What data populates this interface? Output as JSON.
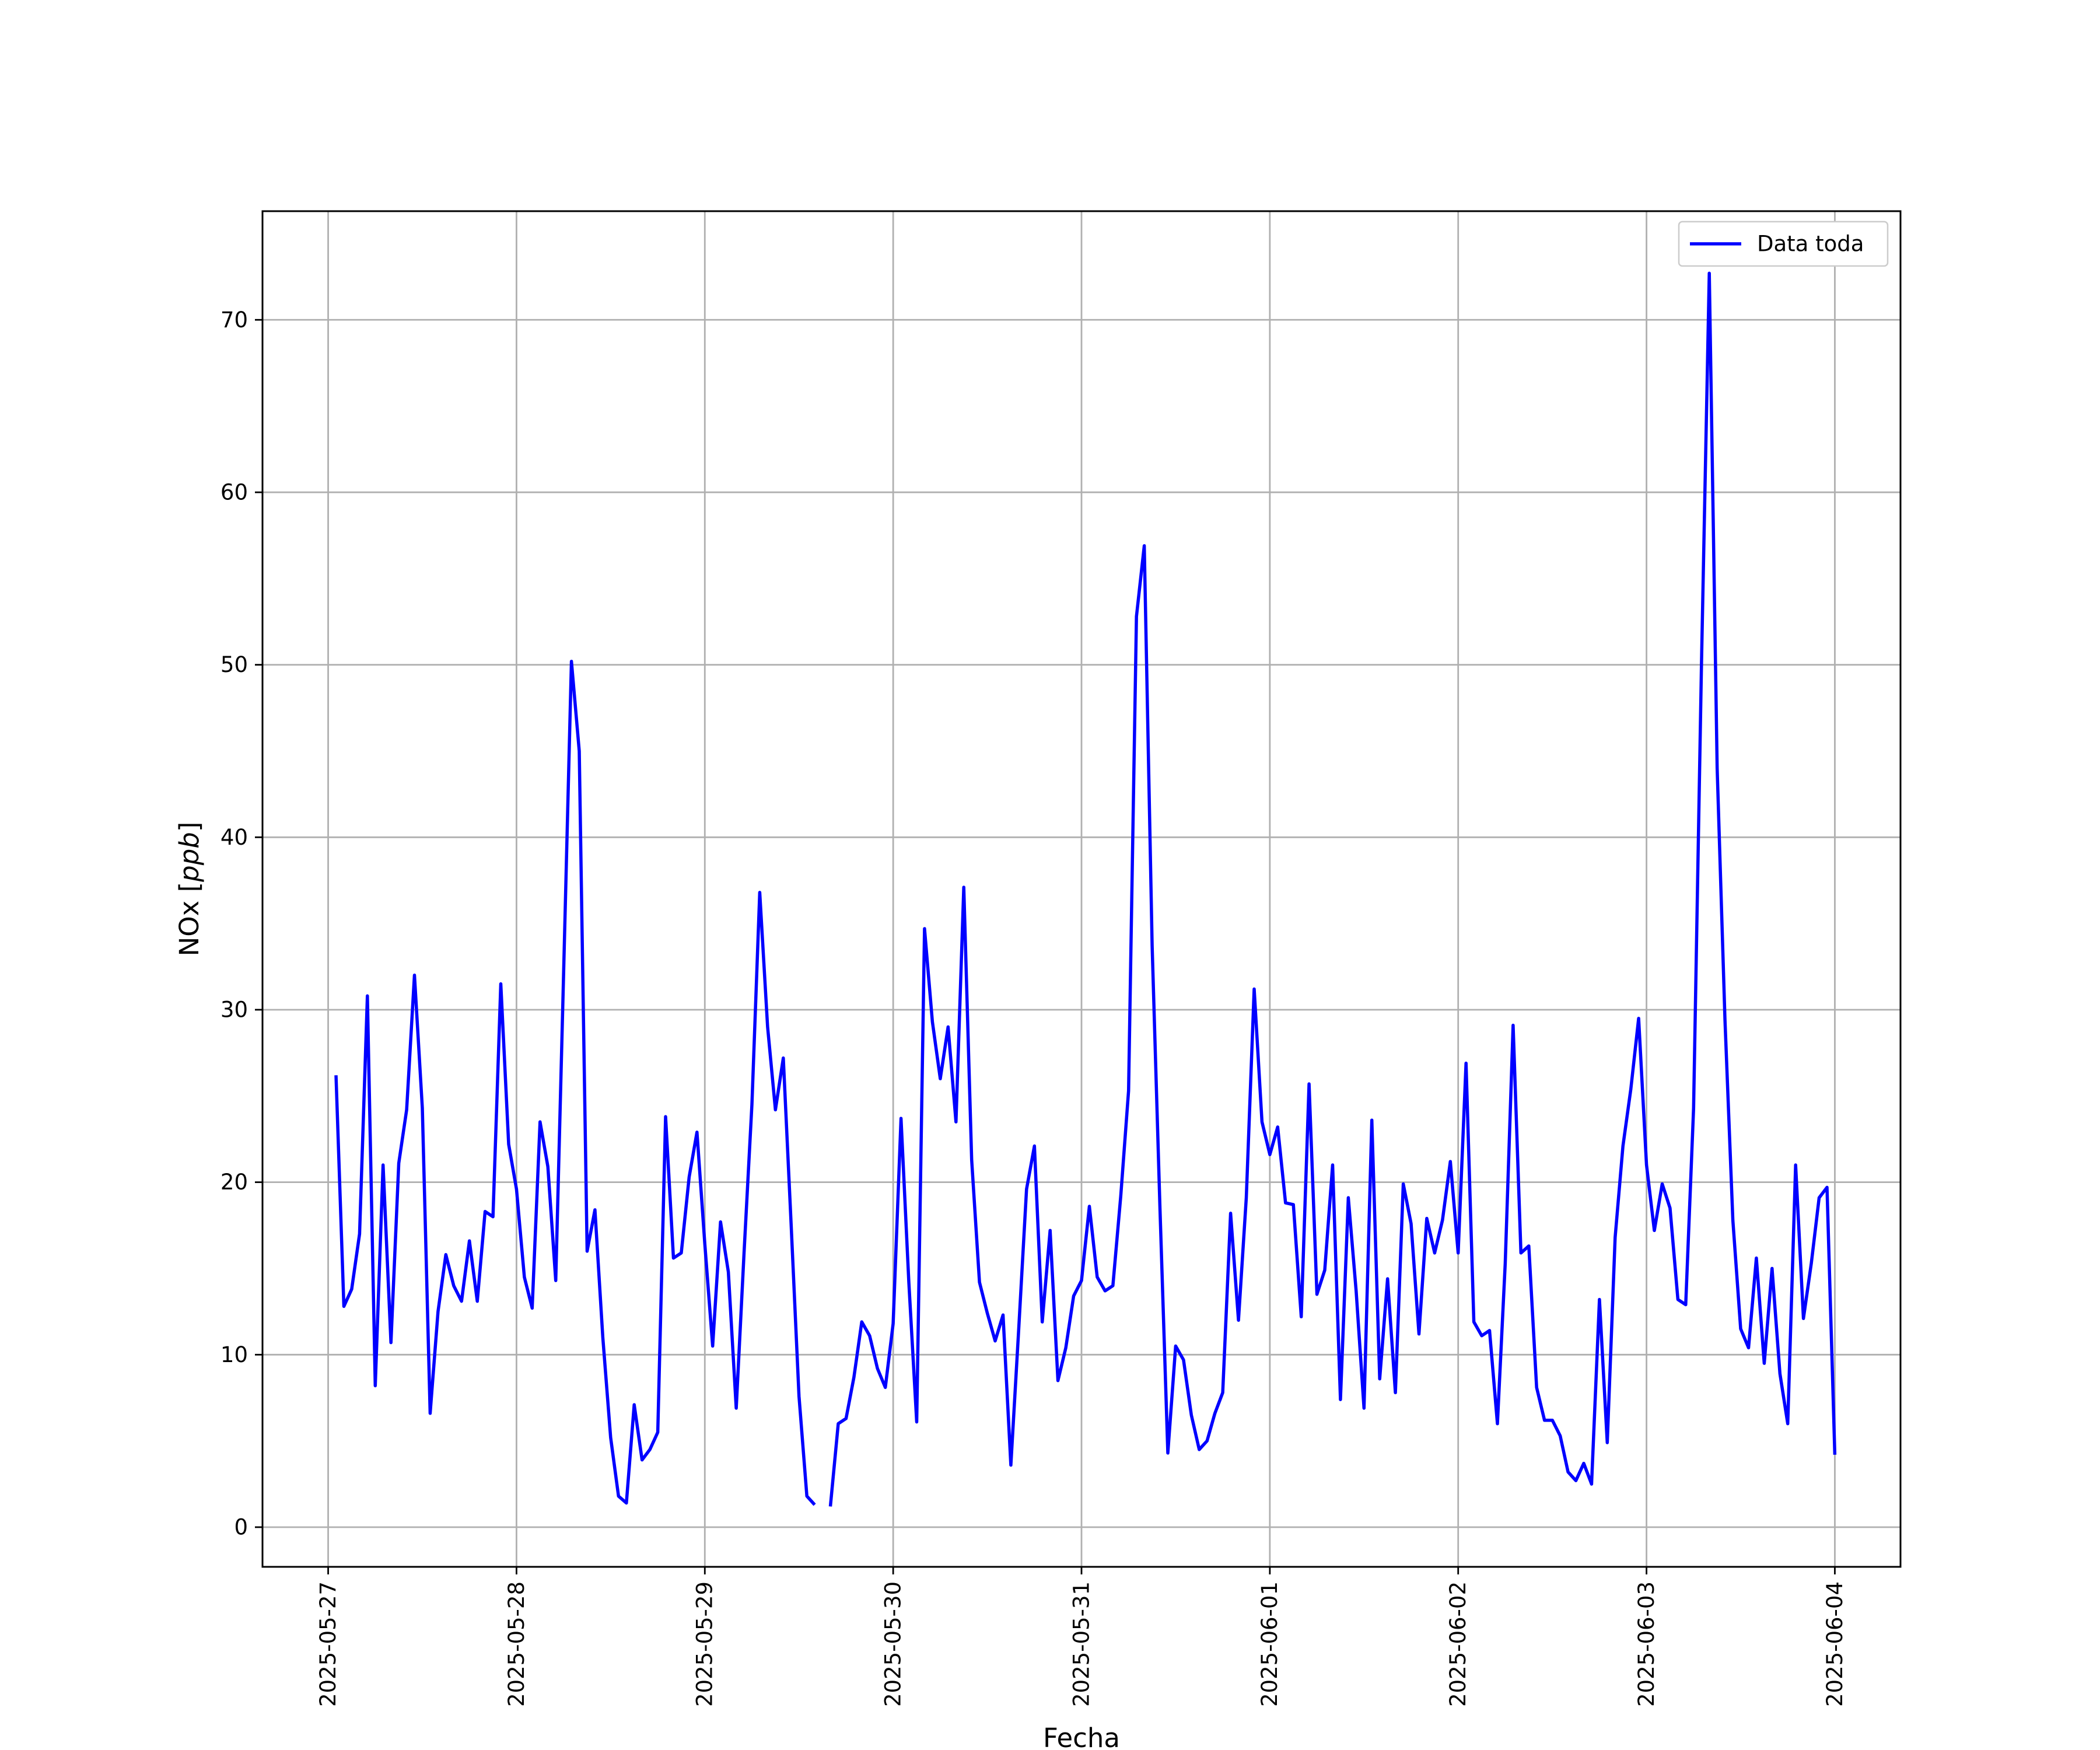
{
  "chart_data": {
    "type": "line",
    "title": "",
    "xlabel": "Fecha",
    "ylabel_text": "NOx [",
    "ylabel_unit": "ppb",
    "ylabel_close": "]",
    "x_start": "2025-05-27",
    "x_end": "2025-06-04",
    "xlim": [
      "2025-05-26T15:38",
      "2025-06-04T08:22"
    ],
    "ylim": [
      -2.3,
      76.3
    ],
    "x_ticks": [
      "2025-05-27",
      "2025-05-28",
      "2025-05-29",
      "2025-05-30",
      "2025-05-31",
      "2025-06-01",
      "2025-06-02",
      "2025-06-03",
      "2025-06-04"
    ],
    "y_ticks": [
      0,
      10,
      20,
      30,
      40,
      50,
      60,
      70
    ],
    "y_tick_labels": [
      "0",
      "10",
      "20",
      "30",
      "40",
      "50",
      "60",
      "70"
    ],
    "grid": true,
    "legend_position": "top-right",
    "series": [
      {
        "name": "Data toda",
        "color": "#0000ff",
        "start": "2025-05-27T01:00",
        "step_hours": 1,
        "values": [
          26.2,
          12.8,
          13.8,
          17.0,
          30.8,
          8.2,
          21.0,
          10.7,
          21.1,
          24.2,
          32.0,
          24.3,
          6.6,
          12.5,
          15.8,
          14.0,
          13.1,
          16.6,
          13.1,
          18.3,
          18.0,
          31.5,
          22.2,
          19.6,
          14.5,
          12.7,
          23.5,
          20.9,
          14.3,
          32.0,
          50.2,
          45.0,
          16.0,
          18.4,
          11.0,
          5.2,
          1.8,
          1.4,
          7.1,
          3.9,
          4.5,
          5.5,
          23.8,
          15.6,
          15.9,
          20.3,
          22.9,
          16.4,
          10.5,
          17.7,
          14.8,
          6.9,
          15.9,
          24.5,
          36.8,
          29.0,
          24.2,
          27.2,
          17.5,
          7.6,
          1.8,
          1.3,
          null,
          1.2,
          6.0,
          6.3,
          8.7,
          11.9,
          11.1,
          9.2,
          8.1,
          11.8,
          23.7,
          14.2,
          6.1,
          34.7,
          29.3,
          26.0,
          29.0,
          23.5,
          37.1,
          21.3,
          14.2,
          12.4,
          10.8,
          12.3,
          3.6,
          11.5,
          19.6,
          22.1,
          11.9,
          17.2,
          8.5,
          10.4,
          13.4,
          14.3,
          18.6,
          14.5,
          13.7,
          14.0,
          19.2,
          25.3,
          52.8,
          56.9,
          33.7,
          18.5,
          4.3,
          10.5,
          9.7,
          6.5,
          4.5,
          5.0,
          6.6,
          7.8,
          18.2,
          12.0,
          19.1,
          31.2,
          23.5,
          21.6,
          23.2,
          18.8,
          18.7,
          12.2,
          25.7,
          13.5,
          14.9,
          21.0,
          7.4,
          19.1,
          13.7,
          6.9,
          23.6,
          8.6,
          14.4,
          7.8,
          19.9,
          17.6,
          11.2,
          17.9,
          15.9,
          17.8,
          21.2,
          15.9,
          26.9,
          11.9,
          11.1,
          11.4,
          6.0,
          15.3,
          29.1,
          15.9,
          16.3,
          8.1,
          6.2,
          6.2,
          5.3,
          3.2,
          2.7,
          3.7,
          2.5,
          13.2,
          4.9,
          16.8,
          22.1,
          25.4,
          29.5,
          21.0,
          17.2,
          19.9,
          18.5,
          13.2,
          12.9,
          24.3,
          50.0,
          72.7,
          44.0,
          29.4,
          17.8,
          11.5,
          10.4,
          15.6,
          9.5,
          15.0,
          8.9,
          6.0,
          21.0,
          12.1,
          15.3,
          19.1,
          19.7,
          4.2
        ]
      }
    ]
  }
}
